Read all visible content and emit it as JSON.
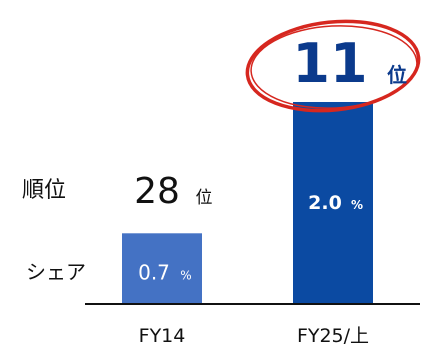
{
  "labels": {
    "rank_label": "順位",
    "share_label": "シェア",
    "rank_unit": "位",
    "share_unit": "%"
  },
  "colors": {
    "bar_fy14": "#4472c4",
    "bar_fy25": "#0b4aa2",
    "rank_highlight": "#0b3a8c",
    "ellipse": "#d6271f",
    "share_text_light": "#ffffff",
    "axis": "#111111"
  },
  "chart_data": {
    "type": "bar",
    "categories": [
      "FY14",
      "FY25/上"
    ],
    "series": [
      {
        "name": "シェア",
        "values": [
          0.7,
          2.0
        ]
      }
    ],
    "ranks": [
      28,
      11
    ],
    "value_labels": [
      "0.7",
      "2.0"
    ],
    "rank_labels": [
      "28",
      "11"
    ],
    "ylim": [
      0,
      2.0
    ],
    "grid": false,
    "legend": "none"
  }
}
